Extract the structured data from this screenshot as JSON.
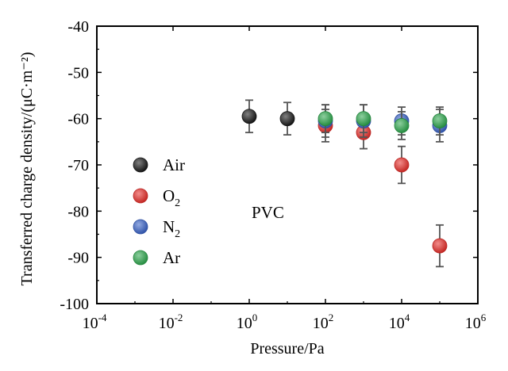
{
  "chart_data": {
    "type": "scatter",
    "x_scale": "log",
    "xlabel": "Pressure/Pa",
    "ylabel": "Transferred charge density/(μC·m⁻²)",
    "xlim": [
      0.0001,
      1000000
    ],
    "ylim": [
      -100,
      -40
    ],
    "x_ticks": [
      {
        "base": "10",
        "exp": "-4"
      },
      {
        "base": "10",
        "exp": "-2"
      },
      {
        "base": "10",
        "exp": "0"
      },
      {
        "base": "10",
        "exp": "2"
      },
      {
        "base": "10",
        "exp": "4"
      },
      {
        "base": "10",
        "exp": "6"
      }
    ],
    "y_ticks": [
      "-40",
      "-50",
      "-60",
      "-70",
      "-80",
      "-90",
      "-100"
    ],
    "legend_position": "left",
    "annotation": "PVC",
    "series": [
      {
        "name": "Air",
        "name_sub": "",
        "color": "#1a1a1a",
        "points": [
          {
            "x": 1,
            "y": -59.5,
            "err": 3.5
          },
          {
            "x": 10,
            "y": -60,
            "err": 3.5
          }
        ]
      },
      {
        "name": "O",
        "name_sub": "2",
        "color": "#e8302c",
        "points": [
          {
            "x": 100,
            "y": -61.5,
            "err": 3.5
          },
          {
            "x": 1000,
            "y": -63,
            "err": 3.5
          },
          {
            "x": 10000,
            "y": -70,
            "err": 4
          },
          {
            "x": 100000,
            "y": -87.5,
            "err": 4.5
          }
        ]
      },
      {
        "name": "N",
        "name_sub": "2",
        "color": "#3b64c8",
        "points": [
          {
            "x": 100,
            "y": -60.5,
            "err": 3.5
          },
          {
            "x": 1000,
            "y": -60.5,
            "err": 3.5
          },
          {
            "x": 10000,
            "y": -60.5,
            "err": 3
          },
          {
            "x": 100000,
            "y": -61.5,
            "err": 3.5
          }
        ]
      },
      {
        "name": "Ar",
        "name_sub": "",
        "color": "#2fa84f",
        "points": [
          {
            "x": 100,
            "y": -60,
            "err": 3
          },
          {
            "x": 1000,
            "y": -60,
            "err": 3
          },
          {
            "x": 10000,
            "y": -61.5,
            "err": 3
          },
          {
            "x": 100000,
            "y": -60.5,
            "err": 3
          }
        ]
      }
    ]
  }
}
